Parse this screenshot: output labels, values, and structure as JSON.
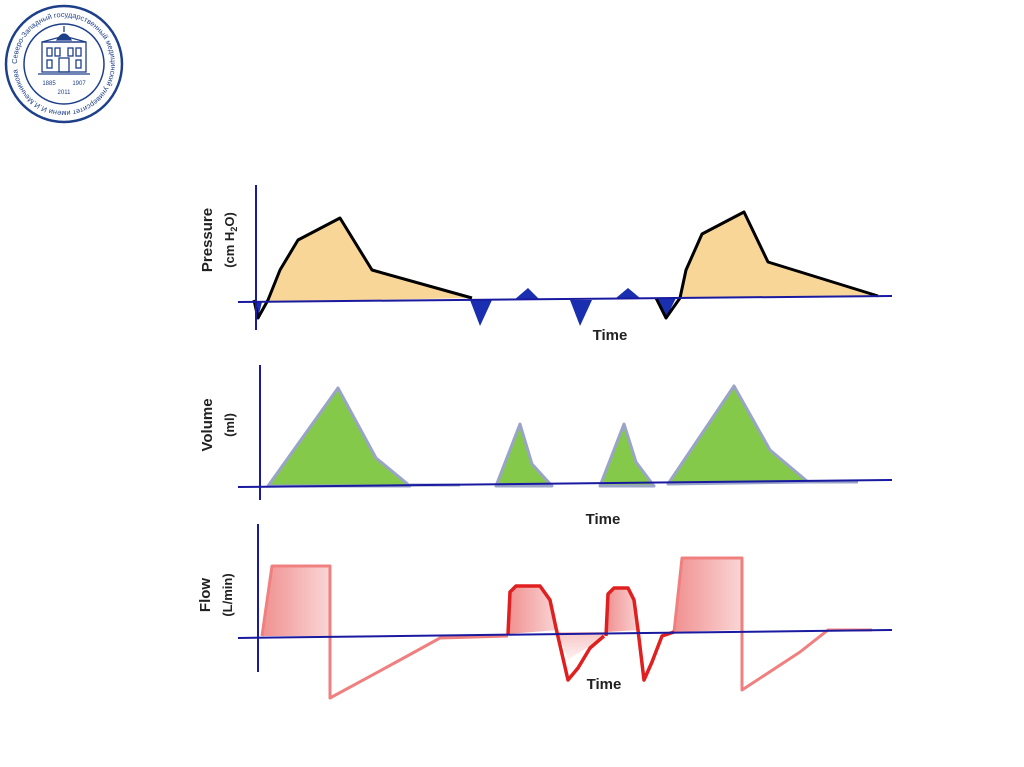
{
  "logo": {
    "ring_text": "Северо-Западный государственный медицинский университет имени И.И.Мечникова",
    "year_left": "1885",
    "year_right": "1907",
    "year_bottom": "2011"
  },
  "panels": {
    "pressure": {
      "label": "Pressure",
      "unit_prefix": "(cm H",
      "unit_sub": "2",
      "unit_suffix": "O)",
      "time_label": "Time"
    },
    "volume": {
      "label": "Volume",
      "unit": "(ml)",
      "time_label": "Time"
    },
    "flow": {
      "label": "Flow",
      "unit": "(L/min)",
      "time_label": "Time"
    }
  },
  "colors": {
    "axis": "#1a1aa0",
    "pressure_line": "#000000",
    "pressure_fill": "#f7cf86",
    "pressure_neg_fill": "#1a2fb0",
    "volume_fill": "#84c94a",
    "volume_line": "#9aa4c8",
    "flow_line": "#e02020",
    "flow_fill": "#f08a8a"
  }
}
